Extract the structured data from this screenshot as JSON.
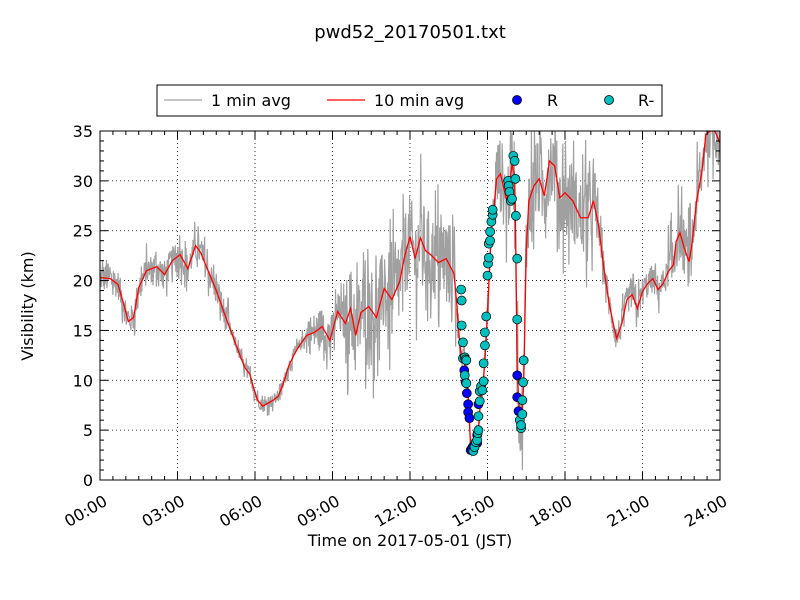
{
  "chart_data": {
    "type": "line",
    "title": "pwd52_20170501.txt",
    "xlabel": "Time on 2017-05-01 (JST)",
    "ylabel": "Visibility (km)",
    "xlim": [
      0,
      24
    ],
    "ylim": [
      0,
      35
    ],
    "x_ticks": [
      0,
      3,
      6,
      9,
      12,
      15,
      18,
      21,
      24
    ],
    "x_tick_labels": [
      "00:00",
      "03:00",
      "06:00",
      "09:00",
      "12:00",
      "15:00",
      "18:00",
      "21:00",
      "24:00"
    ],
    "y_ticks": [
      0,
      5,
      10,
      15,
      20,
      25,
      30,
      35
    ],
    "y_tick_labels": [
      "0",
      "5",
      "10",
      "15",
      "20",
      "25",
      "30",
      "35"
    ],
    "grid": true,
    "legend_position": "top-center",
    "legend": [
      {
        "label": "1 min avg",
        "kind": "line",
        "color": "#a0a0a0"
      },
      {
        "label": "10 min avg",
        "kind": "line",
        "color": "#ff0000"
      },
      {
        "label": "R",
        "kind": "marker",
        "color": "#0000ff"
      },
      {
        "label": "R-",
        "kind": "marker",
        "color": "#00bfbf"
      }
    ],
    "series": [
      {
        "name": "10 min avg",
        "color": "#ff0000",
        "points": [
          [
            0.0,
            20.3
          ],
          [
            0.4,
            20.2
          ],
          [
            0.7,
            19.6
          ],
          [
            0.9,
            17.8
          ],
          [
            1.1,
            15.9
          ],
          [
            1.3,
            16.3
          ],
          [
            1.5,
            19.3
          ],
          [
            1.8,
            21.0
          ],
          [
            2.2,
            21.4
          ],
          [
            2.5,
            20.6
          ],
          [
            2.8,
            22.0
          ],
          [
            3.1,
            22.6
          ],
          [
            3.4,
            21.2
          ],
          [
            3.7,
            23.5
          ],
          [
            3.9,
            22.8
          ],
          [
            4.2,
            20.9
          ],
          [
            4.5,
            19.0
          ],
          [
            4.8,
            16.8
          ],
          [
            5.0,
            15.4
          ],
          [
            5.3,
            13.3
          ],
          [
            5.6,
            11.3
          ],
          [
            5.8,
            10.6
          ],
          [
            5.95,
            9.2
          ],
          [
            6.1,
            8.0
          ],
          [
            6.3,
            7.4
          ],
          [
            6.5,
            7.7
          ],
          [
            6.7,
            8.0
          ],
          [
            6.9,
            8.4
          ],
          [
            7.1,
            9.7
          ],
          [
            7.3,
            11.4
          ],
          [
            7.5,
            12.5
          ],
          [
            7.7,
            13.4
          ],
          [
            8.0,
            14.5
          ],
          [
            8.3,
            14.8
          ],
          [
            8.6,
            15.4
          ],
          [
            8.9,
            14.0
          ],
          [
            9.2,
            16.9
          ],
          [
            9.5,
            15.7
          ],
          [
            9.7,
            17.2
          ],
          [
            9.9,
            14.5
          ],
          [
            10.1,
            16.8
          ],
          [
            10.4,
            17.4
          ],
          [
            10.7,
            16.3
          ],
          [
            11.0,
            19.2
          ],
          [
            11.3,
            18.1
          ],
          [
            11.6,
            19.9
          ],
          [
            11.8,
            22.5
          ],
          [
            12.0,
            24.4
          ],
          [
            12.2,
            22.2
          ],
          [
            12.4,
            24.3
          ],
          [
            12.6,
            23.0
          ],
          [
            12.8,
            22.6
          ],
          [
            13.1,
            21.8
          ],
          [
            13.4,
            22.2
          ],
          [
            13.7,
            20.7
          ],
          [
            13.8,
            18.0
          ],
          [
            13.9,
            14.5
          ],
          [
            14.0,
            12.0
          ],
          [
            14.1,
            11.8
          ],
          [
            14.2,
            10.8
          ],
          [
            14.3,
            5.8
          ],
          [
            14.35,
            3.2
          ],
          [
            14.5,
            3.7
          ],
          [
            14.65,
            5.2
          ],
          [
            14.75,
            8.5
          ],
          [
            14.85,
            10.3
          ],
          [
            14.95,
            14.2
          ],
          [
            15.05,
            19.5
          ],
          [
            15.15,
            25.0
          ],
          [
            15.25,
            27.3
          ],
          [
            15.35,
            30.2
          ],
          [
            15.5,
            30.7
          ],
          [
            15.6,
            29.6
          ],
          [
            15.75,
            28.0
          ],
          [
            15.85,
            29.4
          ],
          [
            15.95,
            31.7
          ],
          [
            16.05,
            30.5
          ],
          [
            16.1,
            22.4
          ],
          [
            16.15,
            11.0
          ],
          [
            16.25,
            5.7
          ],
          [
            16.3,
            5.4
          ],
          [
            16.4,
            9.5
          ],
          [
            16.5,
            23.0
          ],
          [
            16.6,
            28.0
          ],
          [
            16.8,
            29.5
          ],
          [
            17.0,
            30.2
          ],
          [
            17.2,
            28.5
          ],
          [
            17.4,
            32.0
          ],
          [
            17.6,
            31.5
          ],
          [
            17.8,
            28.3
          ],
          [
            18.0,
            28.8
          ],
          [
            18.3,
            28.0
          ],
          [
            18.6,
            26.3
          ],
          [
            18.9,
            26.3
          ],
          [
            19.1,
            28.0
          ],
          [
            19.3,
            25.5
          ],
          [
            19.5,
            21.3
          ],
          [
            19.7,
            17.8
          ],
          [
            19.9,
            15.3
          ],
          [
            20.0,
            14.2
          ],
          [
            20.2,
            15.7
          ],
          [
            20.4,
            18.1
          ],
          [
            20.6,
            18.6
          ],
          [
            20.8,
            17.2
          ],
          [
            21.0,
            18.9
          ],
          [
            21.2,
            19.7
          ],
          [
            21.4,
            20.2
          ],
          [
            21.6,
            19.1
          ],
          [
            21.8,
            19.7
          ],
          [
            22.0,
            20.9
          ],
          [
            22.2,
            21.6
          ],
          [
            22.3,
            23.9
          ],
          [
            22.45,
            24.8
          ],
          [
            22.6,
            23.4
          ],
          [
            22.8,
            21.9
          ],
          [
            22.9,
            23.4
          ],
          [
            23.1,
            28.1
          ],
          [
            23.3,
            30.9
          ],
          [
            23.45,
            34.6
          ],
          [
            23.6,
            35.0
          ],
          [
            23.8,
            35.0
          ],
          [
            24.0,
            33.8
          ]
        ]
      },
      {
        "name": "R",
        "color": "#0000ff",
        "points": [
          [
            14.1,
            11.0
          ],
          [
            14.15,
            9.8
          ],
          [
            14.2,
            8.7
          ],
          [
            14.25,
            7.6
          ],
          [
            14.25,
            6.8
          ],
          [
            14.3,
            6.2
          ],
          [
            14.35,
            3.0
          ],
          [
            14.4,
            3.2
          ],
          [
            14.45,
            3.4
          ],
          [
            14.6,
            3.7
          ],
          [
            14.6,
            4.5
          ],
          [
            14.65,
            7.6
          ],
          [
            16.15,
            10.5
          ],
          [
            16.15,
            8.3
          ],
          [
            16.2,
            6.9
          ]
        ]
      },
      {
        "name": "R-",
        "color": "#00bfbf",
        "points": [
          [
            13.98,
            19.1
          ],
          [
            14.0,
            18.0
          ],
          [
            14.0,
            15.5
          ],
          [
            14.05,
            13.8
          ],
          [
            14.05,
            12.2
          ],
          [
            14.12,
            12.3
          ],
          [
            14.15,
            12.1
          ],
          [
            14.18,
            12.0
          ],
          [
            14.12,
            10.5
          ],
          [
            14.18,
            9.7
          ],
          [
            14.45,
            2.9
          ],
          [
            14.5,
            3.3
          ],
          [
            14.55,
            3.8
          ],
          [
            14.6,
            4.0
          ],
          [
            14.62,
            4.7
          ],
          [
            14.65,
            5.0
          ],
          [
            14.65,
            6.4
          ],
          [
            14.7,
            7.9
          ],
          [
            14.7,
            8.9
          ],
          [
            14.75,
            9.4
          ],
          [
            14.8,
            9.0
          ],
          [
            14.85,
            9.9
          ],
          [
            14.85,
            11.7
          ],
          [
            14.9,
            13.5
          ],
          [
            14.9,
            14.8
          ],
          [
            14.95,
            16.4
          ],
          [
            15.0,
            20.5
          ],
          [
            15.02,
            21.7
          ],
          [
            15.05,
            22.3
          ],
          [
            15.05,
            23.7
          ],
          [
            15.1,
            24.0
          ],
          [
            15.1,
            24.9
          ],
          [
            15.15,
            25.9
          ],
          [
            15.2,
            26.6
          ],
          [
            15.2,
            27.1
          ],
          [
            15.8,
            30.0
          ],
          [
            15.82,
            29.5
          ],
          [
            15.85,
            28.9
          ],
          [
            15.9,
            28.0
          ],
          [
            15.95,
            28.2
          ],
          [
            16.0,
            32.5
          ],
          [
            16.05,
            32.0
          ],
          [
            16.08,
            30.2
          ],
          [
            16.1,
            26.5
          ],
          [
            16.15,
            22.2
          ],
          [
            16.15,
            16.1
          ],
          [
            16.25,
            6.0
          ],
          [
            16.3,
            5.2
          ],
          [
            16.3,
            5.5
          ],
          [
            16.35,
            6.6
          ],
          [
            16.35,
            8.0
          ],
          [
            16.38,
            9.8
          ],
          [
            16.4,
            12.0
          ]
        ]
      }
    ]
  }
}
